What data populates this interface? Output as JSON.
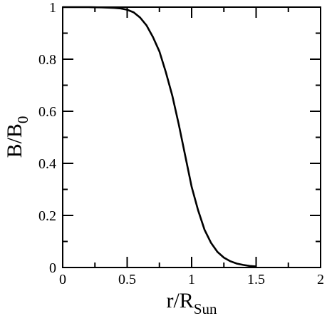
{
  "chart_data": {
    "type": "line",
    "title": "",
    "xlabel": {
      "main": "r/R",
      "sub": "Sun"
    },
    "ylabel": {
      "main": "B/B",
      "sub": "0"
    },
    "xlim": [
      0,
      2
    ],
    "ylim": [
      0,
      1
    ],
    "x_ticks": [
      "0",
      "0.5",
      "1",
      "1.5",
      "2"
    ],
    "y_ticks": [
      "0",
      "0.2",
      "0.4",
      "0.6",
      "0.8",
      "1"
    ],
    "x_tick_values": [
      0,
      0.5,
      1,
      1.5,
      2
    ],
    "y_tick_values": [
      0,
      0.2,
      0.4,
      0.6,
      0.8,
      1
    ],
    "x_minor_step": 0.25,
    "y_minor_step": 0.1,
    "grid": false,
    "legend": "none",
    "line_color": "#000000",
    "series": [
      {
        "x": [
          0,
          0.1,
          0.2,
          0.3,
          0.4,
          0.45,
          0.5,
          0.55,
          0.6,
          0.65,
          0.7,
          0.75,
          0.8,
          0.85,
          0.9,
          0.95,
          1.0,
          1.05,
          1.1,
          1.15,
          1.2,
          1.25,
          1.3,
          1.35,
          1.4,
          1.45,
          1.5
        ],
        "y": [
          1.0,
          1.0,
          1.0,
          0.999,
          0.997,
          0.995,
          0.99,
          0.98,
          0.96,
          0.93,
          0.885,
          0.83,
          0.75,
          0.66,
          0.55,
          0.43,
          0.31,
          0.22,
          0.145,
          0.095,
          0.06,
          0.038,
          0.024,
          0.015,
          0.01,
          0.006,
          0.004
        ]
      }
    ]
  }
}
